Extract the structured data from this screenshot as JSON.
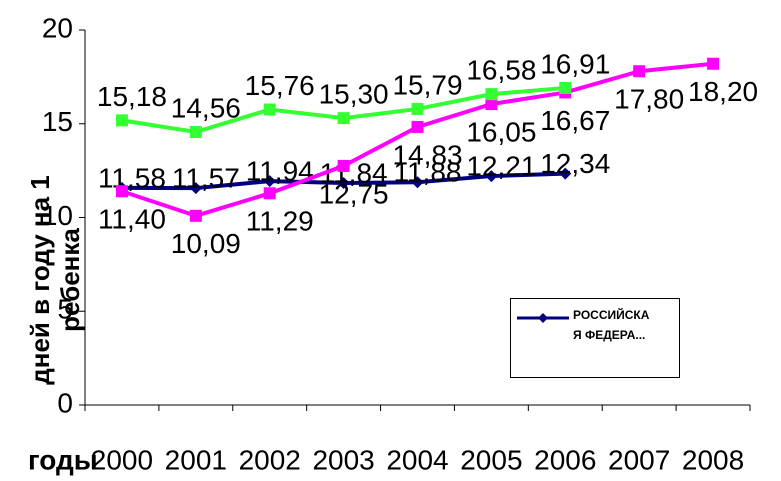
{
  "chart_data": {
    "type": "line",
    "categories": [
      "2000",
      "2001",
      "2002",
      "2003",
      "2004",
      "2005",
      "2006",
      "2007",
      "2008"
    ],
    "series": [
      {
        "name": "РОССИЙСКАЯ ФЕДЕРА...",
        "color": "#000080",
        "marker": "diamond",
        "values": [
          11.58,
          11.57,
          11.94,
          11.84,
          11.88,
          12.21,
          12.34,
          null,
          null
        ],
        "value_labels": [
          "11,58",
          "11,57",
          "11,94",
          "11,84",
          "11,88",
          "12,21",
          "12,34",
          null,
          null
        ]
      },
      {
        "color": "#ff00ff",
        "marker": "square",
        "values": [
          11.4,
          10.09,
          11.29,
          12.75,
          14.83,
          16.05,
          16.67,
          17.8,
          18.2
        ],
        "value_labels": [
          "11,40",
          "10,09",
          "11,29",
          "12,75",
          "14,83",
          "16,05",
          "16,67",
          "17,80",
          "18,20"
        ]
      },
      {
        "color": "#33ff33",
        "marker": "square",
        "values": [
          15.18,
          14.56,
          15.76,
          15.3,
          15.79,
          16.58,
          16.91,
          null,
          null
        ],
        "value_labels": [
          "15,18",
          "14,56",
          "15,76",
          "15,30",
          "15,79",
          "16,58",
          "16,91",
          null,
          null
        ]
      }
    ],
    "ylim": [
      0,
      20
    ],
    "yticks": [
      0,
      5,
      10,
      15,
      20
    ],
    "y_label": "дней в году на 1 ребенка",
    "x_label": "годы",
    "legend": "lower-right"
  }
}
